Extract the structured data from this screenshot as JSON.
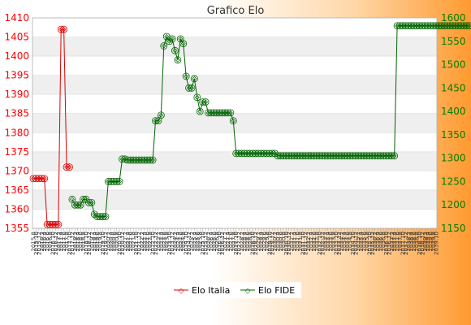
{
  "chart_data": {
    "type": "line",
    "title": "Grafico Elo",
    "left_axis": {
      "ylim": [
        1355,
        1410
      ],
      "ticks": [
        1355,
        1360,
        1365,
        1370,
        1375,
        1380,
        1385,
        1390,
        1395,
        1400,
        1405,
        1410
      ],
      "color": "#ff0000"
    },
    "right_axis": {
      "ylim": [
        1150,
        1600
      ],
      "ticks": [
        1150,
        1200,
        1250,
        1300,
        1350,
        1400,
        1450,
        1500,
        1550,
        1600
      ],
      "color": "#008000"
    },
    "x_count": 146,
    "grid": "horizontal bands",
    "legend_position": "bottom-center",
    "series": [
      {
        "name": "Elo Italia",
        "axis": "left",
        "color": "#dd0000",
        "start_index": 0,
        "values": [
          1368,
          1368,
          1368,
          1368,
          1368,
          1356,
          1356,
          1356,
          1356,
          1356,
          1407,
          1407,
          1371,
          1371
        ]
      },
      {
        "name": "Elo FIDE",
        "axis": "right",
        "color": "#006400",
        "start_index": 14,
        "values": [
          1212,
          1200,
          1200,
          1200,
          1212,
          1212,
          1205,
          1205,
          1180,
          1175,
          1175,
          1175,
          1175,
          1250,
          1250,
          1250,
          1250,
          1250,
          1298,
          1298,
          1296,
          1296,
          1296,
          1296,
          1296,
          1296,
          1296,
          1296,
          1296,
          1296,
          1380,
          1380,
          1392,
          1540,
          1560,
          1550,
          1555,
          1530,
          1510,
          1555,
          1545,
          1475,
          1450,
          1450,
          1470,
          1430,
          1400,
          1420,
          1420,
          1397,
          1397,
          1397,
          1397,
          1397,
          1397,
          1397,
          1397,
          1397,
          1380,
          1310,
          1310,
          1310,
          1310,
          1310,
          1310,
          1310,
          1310,
          1310,
          1310,
          1310,
          1310,
          1310,
          1310,
          1310,
          1305,
          1305,
          1305,
          1305,
          1305,
          1305,
          1305,
          1305,
          1305,
          1305,
          1305,
          1305,
          1305,
          1305,
          1305,
          1305,
          1305,
          1305,
          1305,
          1305,
          1305,
          1305,
          1305,
          1305,
          1305,
          1305,
          1305,
          1305,
          1305,
          1305,
          1305,
          1305,
          1305,
          1305,
          1305,
          1305,
          1305,
          1305,
          1305,
          1305,
          1305,
          1305,
          1305,
          1583,
          1583,
          1583,
          1583,
          1583,
          1583,
          1583,
          1583,
          1583,
          1583,
          1583,
          1583,
          1583,
          1583,
          1583,
          1583,
          1583,
          1583,
          1583,
          1583,
          1583,
          1583,
          1583,
          1583,
          1583,
          1583,
          1583
        ]
      }
    ],
    "xtick_labels": [
      "2015.8",
      "2015.10",
      "2015.12",
      "2016.2",
      "2016.4",
      "2016.6",
      "2016.8",
      "2016.10",
      "2016.12",
      "2017.2",
      "2017.4",
      "2017.6",
      "2017.8",
      "2017.10",
      "2017.12",
      "2018.2",
      "2018.4",
      "2018.6",
      "2018.8",
      "2018.10",
      "2018.12",
      "2019.2",
      "2019.4",
      "2019.6",
      "2019.8",
      "2019.10",
      "2019.12",
      "2020.2",
      "2020.4",
      "2020.6",
      "2020.8",
      "2020.10",
      "2020.12",
      "2021.2",
      "2021.4",
      "2021.6",
      "2021.8",
      "2021.10",
      "2021.12",
      "2022.2",
      "2022.4",
      "2022.6",
      "2022.8",
      "2022.10",
      "2022.12",
      "2023.2",
      "2023.4",
      "2023.6",
      "2023.8",
      "2023.10",
      "2023.12",
      "2024.2",
      "2024.4",
      "2024.6",
      "2024.8",
      "2024.10",
      "2024.12",
      "2025.2",
      "2025.4",
      "2025.6",
      "2025.8",
      "2025.10",
      "2025.12",
      "2026.2",
      "2026.4",
      "2026.6",
      "2026.8",
      "2026.10",
      "2026.12",
      "2027.2",
      "2027.4",
      "2027.6",
      "2027.8",
      "2027.10",
      "2027.12",
      "2028.2",
      "2028.4",
      "2028.6",
      "2028.8",
      "2028.10",
      "2028.12",
      "2029.2",
      "2029.4",
      "2029.6",
      "2029.8",
      "2029.10",
      "2029.12",
      "2030.2",
      "2030.4",
      "2030.6",
      "2030.8",
      "2030.10",
      "2030.12",
      "2031.2",
      "2031.4",
      "2031.6",
      "2031.8",
      "2031.10",
      "2031.12",
      "2032.2",
      "2032.4",
      "2032.6",
      "2032.8",
      "2032.10",
      "2032.12",
      "2033.2",
      "2033.4",
      "2033.6",
      "2033.8",
      "2033.10",
      "2033.12",
      "2034.2",
      "2034.4",
      "2034.6",
      "2034.8",
      "2034.10",
      "2034.12",
      "2035.2",
      "2035.4",
      "2035.6",
      "2035.8",
      "2035.10",
      "2035.12",
      "2036.2",
      "2036.4",
      "2036.6",
      "2036.8",
      "2036.10",
      "2036.12",
      "2037.2",
      "2037.4",
      "2037.6",
      "2037.8",
      "2037.10",
      "2037.12",
      "2038.2",
      "2038.4",
      "2038.6",
      "2038.8",
      "2038.10",
      "2038.12",
      "2039.2",
      "2039.4",
      "2039.6",
      "2039.8",
      "2039.10",
      "2039.12",
      "2040.2",
      "2040.4",
      "2040.6"
    ]
  }
}
